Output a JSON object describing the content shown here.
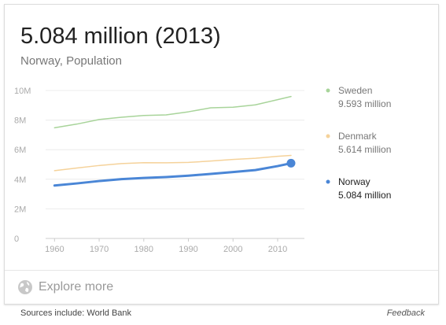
{
  "card": {
    "headline": "5.084 million (2013)",
    "subtitle": "Norway, Population"
  },
  "explore": {
    "label": "Explore more",
    "icon": "globe-icon"
  },
  "footer": {
    "sources": "Sources include: World Bank",
    "feedback": "Feedback"
  },
  "chart_data": {
    "type": "line",
    "x": [
      1960,
      1965,
      1970,
      1975,
      1980,
      1985,
      1990,
      1995,
      2000,
      2005,
      2010,
      2013
    ],
    "series": [
      {
        "name": "Sweden",
        "value_label": "9.593 million",
        "color": "#a8d49a",
        "values": [
          7.48,
          7.73,
          8.04,
          8.19,
          8.31,
          8.35,
          8.56,
          8.83,
          8.87,
          9.03,
          9.38,
          9.593
        ]
      },
      {
        "name": "Denmark",
        "value_label": "5.614 million",
        "color": "#f5d29a",
        "values": [
          4.58,
          4.76,
          4.93,
          5.06,
          5.12,
          5.11,
          5.14,
          5.23,
          5.34,
          5.42,
          5.55,
          5.614
        ]
      },
      {
        "name": "Norway",
        "value_label": "5.084 million",
        "color": "#4a86d6",
        "highlight": true,
        "values": [
          3.58,
          3.72,
          3.88,
          4.01,
          4.09,
          4.15,
          4.24,
          4.36,
          4.49,
          4.62,
          4.89,
          5.084
        ]
      }
    ],
    "yticks": [
      0,
      2,
      4,
      6,
      8,
      10
    ],
    "ytick_labels": [
      "0",
      "2M",
      "4M",
      "6M",
      "8M",
      "10M"
    ],
    "xticks": [
      1960,
      1970,
      1980,
      1990,
      2000,
      2010
    ],
    "xtick_labels": [
      "1960",
      "1970",
      "1980",
      "1990",
      "2000",
      "2010"
    ],
    "ylim": [
      0,
      10
    ],
    "xlim": [
      1958,
      2016
    ],
    "grid": true,
    "legend": "right"
  }
}
